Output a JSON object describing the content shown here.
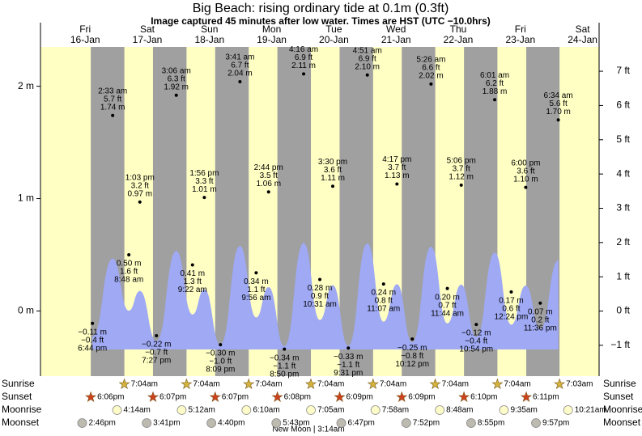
{
  "title": "Big Beach: rising  ordinary tide at 0.1m (0.3ft)",
  "subtitle": "Image captured 45 minutes after low water. Times are HST (UTC −10.0hrs)",
  "moon_phase": "New Moon | 3:14am",
  "chart_data": {
    "type": "tide",
    "row_labels": {
      "sunrise": "Sunrise",
      "sunset": "Sunset",
      "moonrise": "Moonrise",
      "moonset": "Moonset"
    },
    "colors": {
      "day": "#ffffc4",
      "night": "#a0a0a0",
      "water": "#9fa9f4",
      "date": "#e00000",
      "sunrise": "#d4b43c",
      "sunset": "#d0401c",
      "moonrise": "#fdfbc8",
      "moonset": "#bdbab0"
    },
    "ylim": [
      -0.58,
      2.35
    ],
    "yticks": [
      {
        "value": 0,
        "label": "0 m"
      },
      {
        "value": 1,
        "label": "1 m"
      },
      {
        "value": 2,
        "label": "2 m"
      }
    ],
    "y2lim": [
      -1.9,
      7.71
    ],
    "y2ticks": [
      {
        "value": -1,
        "label": "−1 ft"
      },
      {
        "value": 0,
        "label": "0 ft"
      },
      {
        "value": 1,
        "label": "1 ft"
      },
      {
        "value": 2,
        "label": "2 ft"
      },
      {
        "value": 3,
        "label": "3 ft"
      },
      {
        "value": 4,
        "label": "4 ft"
      },
      {
        "value": 5,
        "label": "5 ft"
      },
      {
        "value": 6,
        "label": "6 ft"
      },
      {
        "value": 7,
        "label": "7 ft"
      }
    ],
    "days": [
      {
        "weekday": "Fri",
        "date": "16-Jan",
        "sunset": "6:06pm",
        "moonset": "2:46pm",
        "tides": {
          "times": [
            "6:44 pm"
          ],
          "values": [
            -0.11
          ],
          "value_labels": [
            "−0.11 m"
          ],
          "ft_labels": [
            "−0.4 ft"
          ]
        }
      },
      {
        "weekday": "Sat",
        "date": "17-Jan",
        "sunrise": "7:04am",
        "sunset": "6:07pm",
        "moonrise": "4:14am",
        "moonset": "3:41pm",
        "tides": {
          "times": [
            "2:33 am",
            "8:48 am",
            "1:03 pm",
            "7:27 pm"
          ],
          "values": [
            1.74,
            0.5,
            0.97,
            -0.22
          ],
          "value_labels": [
            "1.74 m",
            "0.50 m",
            "0.97 m",
            "−0.22 m"
          ],
          "ft_labels": [
            "5.7 ft",
            "1.6 ft",
            "3.2 ft",
            "−0.7 ft"
          ]
        }
      },
      {
        "weekday": "Sun",
        "date": "18-Jan",
        "sunrise": "7:04am",
        "sunset": "6:07pm",
        "moonrise": "5:12am",
        "moonset": "4:40pm",
        "tides": {
          "times": [
            "3:06 am",
            "9:22 am",
            "1:56 pm",
            "8:09 pm"
          ],
          "values": [
            1.92,
            0.41,
            1.01,
            -0.3
          ],
          "value_labels": [
            "1.92 m",
            "0.41 m",
            "1.01 m",
            "−0.30 m"
          ],
          "ft_labels": [
            "6.3 ft",
            "1.3 ft",
            "3.3 ft",
            "−1.0 ft"
          ]
        }
      },
      {
        "weekday": "Mon",
        "date": "19-Jan",
        "sunrise": "7:04am",
        "sunset": "6:08pm",
        "moonrise": "6:10am",
        "moonset": "5:43pm",
        "tides": {
          "times": [
            "3:41 am",
            "9:56 am",
            "2:44 pm",
            "8:50 pm"
          ],
          "values": [
            2.04,
            0.34,
            1.06,
            -0.34
          ],
          "value_labels": [
            "2.04 m",
            "0.34 m",
            "1.06 m",
            "−0.34 m"
          ],
          "ft_labels": [
            "6.7 ft",
            "1.1 ft",
            "3.5 ft",
            "−1.1 ft"
          ]
        }
      },
      {
        "weekday": "Tue",
        "date": "20-Jan",
        "sunrise": "7:04am",
        "sunset": "6:09pm",
        "moonrise": "7:05am",
        "moonset": "6:47pm",
        "tides": {
          "times": [
            "4:16 am",
            "10:31 am",
            "3:30 pm",
            "9:31 pm"
          ],
          "values": [
            2.11,
            0.28,
            1.11,
            -0.33
          ],
          "value_labels": [
            "2.11 m",
            "0.28 m",
            "1.11 m",
            "−0.33 m"
          ],
          "ft_labels": [
            "6.9 ft",
            "0.9 ft",
            "3.6 ft",
            "−1.1 ft"
          ]
        }
      },
      {
        "weekday": "Wed",
        "date": "21-Jan",
        "sunrise": "7:04am",
        "sunset": "6:09pm",
        "moonrise": "7:58am",
        "moonset": "7:52pm",
        "tides": {
          "times": [
            "4:51 am",
            "11:07 am",
            "4:17 pm",
            "10:12 pm"
          ],
          "values": [
            2.1,
            0.24,
            1.13,
            -0.25
          ],
          "value_labels": [
            "2.10 m",
            "0.24 m",
            "1.13 m",
            "−0.25 m"
          ],
          "ft_labels": [
            "6.9 ft",
            "0.8 ft",
            "3.7 ft",
            "−0.8 ft"
          ]
        }
      },
      {
        "weekday": "Thu",
        "date": "22-Jan",
        "sunrise": "7:04am",
        "sunset": "6:10pm",
        "moonrise": "8:48am",
        "moonset": "8:55pm",
        "tides": {
          "times": [
            "5:26 am",
            "11:44 am",
            "5:06 pm",
            "10:54 pm"
          ],
          "values": [
            2.02,
            0.2,
            1.12,
            -0.12
          ],
          "value_labels": [
            "2.02 m",
            "0.20 m",
            "1.12 m",
            "−0.12 m"
          ],
          "ft_labels": [
            "6.6 ft",
            "0.7 ft",
            "3.7 ft",
            "−0.4 ft"
          ]
        }
      },
      {
        "weekday": "Fri",
        "date": "23-Jan",
        "sunrise": "7:04am",
        "sunset": "6:11pm",
        "moonrise": "9:35am",
        "moonset": "9:57pm",
        "tides": {
          "times": [
            "6:01 am",
            "12:24 pm",
            "6:00 pm",
            "11:36 pm"
          ],
          "values": [
            1.88,
            0.17,
            1.1,
            0.07
          ],
          "value_labels": [
            "1.88 m",
            "0.17 m",
            "1.10 m",
            "0.07 m"
          ],
          "ft_labels": [
            "6.2 ft",
            "0.6 ft",
            "3.6 ft",
            "0.2 ft"
          ]
        }
      },
      {
        "weekday": "Sat",
        "date": "24-Jan",
        "sunrise": "7:03am",
        "moonrise": "10:21am",
        "tides": {
          "times": [
            "6:34 am"
          ],
          "values": [
            1.7
          ],
          "value_labels": [
            "1.70 m"
          ],
          "ft_labels": [
            "5.6 ft"
          ]
        }
      }
    ]
  }
}
